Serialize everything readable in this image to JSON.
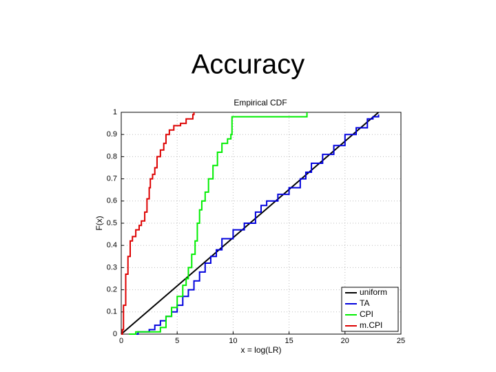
{
  "slide_title": "Accuracy",
  "chart_data": {
    "type": "line",
    "drawstyle": "steps-post",
    "title": "Empirical CDF",
    "xlabel": "x = log(LR)",
    "ylabel": "F(x)",
    "xlim": [
      0,
      25
    ],
    "ylim": [
      0,
      1
    ],
    "xticks": [
      0,
      5,
      10,
      15,
      20,
      25
    ],
    "yticks": [
      0,
      0.1,
      0.2,
      0.3,
      0.4,
      0.5,
      0.6,
      0.7,
      0.8,
      0.9,
      1
    ],
    "grid": true,
    "legend": "lower right",
    "series": [
      {
        "name": "uniform",
        "color": "#000000",
        "step": false,
        "x": [
          0,
          23
        ],
        "values": [
          0,
          1
        ]
      },
      {
        "name": "TA",
        "color": "#0000dd",
        "step": true,
        "x": [
          1.3,
          1.5,
          2.5,
          3,
          3.5,
          4,
          4.5,
          5,
          5.5,
          6,
          6.5,
          7,
          7.5,
          8,
          8.5,
          9,
          10,
          11,
          12,
          12.5,
          13,
          14,
          15,
          16,
          16.5,
          17,
          18,
          19,
          20,
          21,
          22,
          22.5,
          23
        ],
        "values": [
          0,
          0.01,
          0.02,
          0.04,
          0.06,
          0.08,
          0.1,
          0.13,
          0.17,
          0.2,
          0.24,
          0.28,
          0.32,
          0.35,
          0.38,
          0.43,
          0.47,
          0.5,
          0.55,
          0.58,
          0.6,
          0.63,
          0.66,
          0.7,
          0.73,
          0.77,
          0.81,
          0.85,
          0.9,
          0.93,
          0.97,
          0.98,
          0.99
        ]
      },
      {
        "name": "CPI",
        "color": "#00ee00",
        "step": true,
        "x": [
          0.7,
          1.3,
          3.5,
          4,
          4.5,
          5,
          5.5,
          5.8,
          6,
          6.3,
          6.6,
          6.8,
          7,
          7.2,
          7.5,
          7.8,
          8.2,
          8.6,
          9,
          9.5,
          9.8,
          9.9,
          16.6
        ],
        "values": [
          0,
          0.01,
          0.03,
          0.08,
          0.12,
          0.17,
          0.22,
          0.25,
          0.3,
          0.36,
          0.42,
          0.5,
          0.56,
          0.6,
          0.64,
          0.7,
          0.76,
          0.82,
          0.86,
          0.88,
          0.9,
          0.98,
          1
        ]
      },
      {
        "name": "m.CPI",
        "color": "#dd0000",
        "step": true,
        "x": [
          0,
          0.1,
          0.2,
          0.4,
          0.6,
          0.8,
          1,
          1.3,
          1.6,
          1.8,
          2.1,
          2.3,
          2.5,
          2.6,
          2.8,
          3,
          3.2,
          3.5,
          3.8,
          4,
          4.3,
          4.7,
          5.3,
          5.8,
          6.4,
          6.5
        ],
        "values": [
          0,
          0.02,
          0.13,
          0.27,
          0.35,
          0.42,
          0.44,
          0.47,
          0.49,
          0.51,
          0.55,
          0.61,
          0.66,
          0.7,
          0.72,
          0.75,
          0.8,
          0.83,
          0.86,
          0.9,
          0.92,
          0.94,
          0.95,
          0.97,
          0.99,
          1
        ]
      }
    ]
  }
}
